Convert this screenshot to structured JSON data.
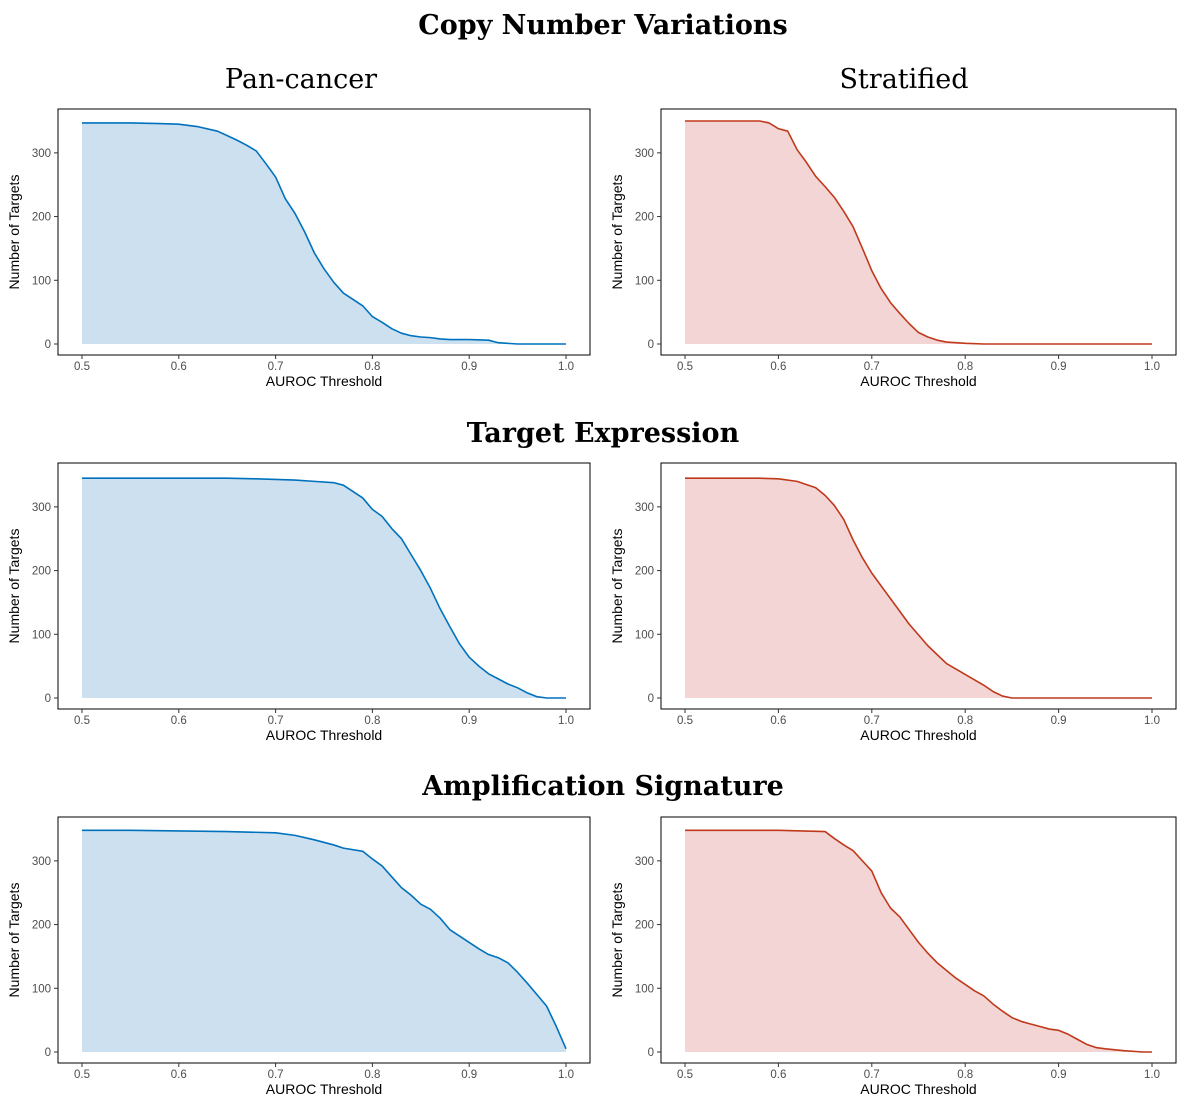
{
  "column_titles": [
    "Pan-cancer",
    "Stratified"
  ],
  "row_titles": [
    "Copy Number Variations",
    "Target Expression",
    "Amplification Signature"
  ],
  "styles": {
    "pan_line": "#0072bd",
    "pan_fill": "#cce0f0",
    "strat_line": "#c0391b",
    "strat_fill": "#f2d5d4"
  },
  "chart_data": [
    {
      "type": "area",
      "row": "Copy Number Variations",
      "column": "Pan-cancer",
      "xlabel": "AUROC Threshold",
      "ylabel": "Number of Targets",
      "xlim": [
        0.5,
        1.0
      ],
      "ylim": [
        0,
        350
      ],
      "xticks": [
        "0.5",
        "0.6",
        "0.7",
        "0.8",
        "0.9",
        "1.0"
      ],
      "yticks": [
        "0",
        "100",
        "200",
        "300"
      ],
      "x": [
        0.5,
        0.55,
        0.58,
        0.6,
        0.62,
        0.64,
        0.65,
        0.66,
        0.67,
        0.68,
        0.69,
        0.7,
        0.71,
        0.72,
        0.73,
        0.74,
        0.75,
        0.76,
        0.77,
        0.78,
        0.79,
        0.8,
        0.81,
        0.82,
        0.83,
        0.84,
        0.85,
        0.86,
        0.87,
        0.88,
        0.9,
        0.92,
        0.93,
        0.95,
        1.0
      ],
      "y": [
        347,
        347,
        346,
        345,
        341,
        334,
        327,
        320,
        312,
        303,
        283,
        262,
        228,
        205,
        176,
        143,
        118,
        97,
        80,
        70,
        60,
        43,
        34,
        24,
        17,
        13,
        11,
        10,
        8,
        7,
        7,
        6,
        2,
        0,
        0
      ],
      "grid": false
    },
    {
      "type": "area",
      "row": "Copy Number Variations",
      "column": "Stratified",
      "xlabel": "AUROC Threshold",
      "ylabel": "Number of Targets",
      "xlim": [
        0.5,
        1.0
      ],
      "ylim": [
        0,
        350
      ],
      "xticks": [
        "0.5",
        "0.6",
        "0.7",
        "0.8",
        "0.9",
        "1.0"
      ],
      "yticks": [
        "0",
        "100",
        "200",
        "300"
      ],
      "x": [
        0.5,
        0.57,
        0.58,
        0.59,
        0.6,
        0.61,
        0.62,
        0.63,
        0.64,
        0.65,
        0.66,
        0.67,
        0.68,
        0.69,
        0.7,
        0.71,
        0.72,
        0.73,
        0.74,
        0.75,
        0.76,
        0.77,
        0.78,
        0.79,
        0.8,
        0.82,
        1.0
      ],
      "y": [
        350,
        350,
        350,
        347,
        338,
        334,
        305,
        285,
        263,
        247,
        230,
        208,
        184,
        150,
        115,
        87,
        65,
        48,
        32,
        18,
        11,
        6,
        3,
        2,
        1,
        0,
        0
      ],
      "grid": false
    },
    {
      "type": "area",
      "row": "Target Expression",
      "column": "Pan-cancer",
      "xlabel": "AUROC Threshold",
      "ylabel": "Number of Targets",
      "xlim": [
        0.5,
        1.0
      ],
      "ylim": [
        0,
        350
      ],
      "xticks": [
        "0.5",
        "0.6",
        "0.7",
        "0.8",
        "0.9",
        "1.0"
      ],
      "yticks": [
        "0",
        "100",
        "200",
        "300"
      ],
      "x": [
        0.5,
        0.65,
        0.68,
        0.7,
        0.72,
        0.74,
        0.76,
        0.77,
        0.78,
        0.79,
        0.8,
        0.81,
        0.82,
        0.83,
        0.84,
        0.85,
        0.86,
        0.87,
        0.88,
        0.89,
        0.9,
        0.91,
        0.92,
        0.93,
        0.94,
        0.95,
        0.96,
        0.97,
        0.98,
        1.0
      ],
      "y": [
        345,
        345,
        344,
        343,
        342,
        340,
        338,
        334,
        324,
        314,
        296,
        285,
        266,
        250,
        225,
        200,
        172,
        140,
        112,
        85,
        64,
        50,
        38,
        30,
        22,
        16,
        8,
        2,
        0,
        0
      ],
      "grid": false
    },
    {
      "type": "area",
      "row": "Target Expression",
      "column": "Stratified",
      "xlabel": "AUROC Threshold",
      "ylabel": "Number of Targets",
      "xlim": [
        0.5,
        1.0
      ],
      "ylim": [
        0,
        350
      ],
      "xticks": [
        "0.5",
        "0.6",
        "0.7",
        "0.8",
        "0.9",
        "1.0"
      ],
      "yticks": [
        "0",
        "100",
        "200",
        "300"
      ],
      "x": [
        0.5,
        0.58,
        0.6,
        0.62,
        0.64,
        0.65,
        0.66,
        0.67,
        0.68,
        0.69,
        0.7,
        0.72,
        0.74,
        0.76,
        0.78,
        0.8,
        0.82,
        0.83,
        0.84,
        0.85,
        1.0
      ],
      "y": [
        345,
        345,
        344,
        340,
        330,
        318,
        302,
        280,
        248,
        220,
        196,
        156,
        116,
        82,
        54,
        37,
        20,
        10,
        3,
        0,
        0
      ],
      "grid": false
    },
    {
      "type": "area",
      "row": "Amplification Signature",
      "column": "Pan-cancer",
      "xlabel": "AUROC Threshold",
      "ylabel": "Number of Targets",
      "xlim": [
        0.5,
        1.0
      ],
      "ylim": [
        0,
        350
      ],
      "xticks": [
        "0.5",
        "0.6",
        "0.7",
        "0.8",
        "0.9",
        "1.0"
      ],
      "yticks": [
        "0",
        "100",
        "200",
        "300"
      ],
      "x": [
        0.5,
        0.55,
        0.6,
        0.65,
        0.7,
        0.72,
        0.74,
        0.76,
        0.77,
        0.79,
        0.8,
        0.81,
        0.82,
        0.83,
        0.84,
        0.85,
        0.86,
        0.87,
        0.88,
        0.89,
        0.9,
        0.91,
        0.92,
        0.93,
        0.94,
        0.95,
        0.96,
        0.97,
        0.98,
        0.99,
        1.0
      ],
      "y": [
        348,
        348,
        347,
        346,
        344,
        340,
        333,
        325,
        320,
        315,
        303,
        292,
        275,
        258,
        246,
        232,
        224,
        210,
        192,
        182,
        172,
        162,
        153,
        148,
        140,
        125,
        108,
        90,
        72,
        40,
        5
      ],
      "grid": false
    },
    {
      "type": "area",
      "row": "Amplification Signature",
      "column": "Stratified",
      "xlabel": "AUROC Threshold",
      "ylabel": "Number of Targets",
      "xlim": [
        0.5,
        1.0
      ],
      "ylim": [
        0,
        350
      ],
      "xticks": [
        "0.5",
        "0.6",
        "0.7",
        "0.8",
        "0.9",
        "1.0"
      ],
      "yticks": [
        "0",
        "100",
        "200",
        "300"
      ],
      "x": [
        0.5,
        0.6,
        0.65,
        0.66,
        0.67,
        0.68,
        0.69,
        0.7,
        0.71,
        0.72,
        0.73,
        0.74,
        0.75,
        0.76,
        0.77,
        0.78,
        0.79,
        0.8,
        0.81,
        0.82,
        0.83,
        0.84,
        0.85,
        0.86,
        0.87,
        0.88,
        0.89,
        0.9,
        0.91,
        0.92,
        0.93,
        0.94,
        0.95,
        0.97,
        0.99,
        1.0
      ],
      "y": [
        348,
        348,
        346,
        335,
        325,
        316,
        300,
        284,
        250,
        226,
        212,
        192,
        172,
        155,
        140,
        128,
        116,
        106,
        96,
        88,
        75,
        64,
        54,
        48,
        44,
        40,
        36,
        34,
        28,
        20,
        12,
        7,
        5,
        2,
        0,
        0
      ],
      "grid": false
    }
  ]
}
